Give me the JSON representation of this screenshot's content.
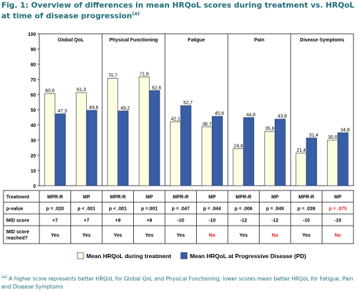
{
  "title": "Fig. 1: Overview of differences in mean HRQoL scores during treatment vs. HRQoL at time of disease progression",
  "title_footnote_marker": "(a)",
  "chart_data": {
    "type": "bar",
    "yticks": [
      "0",
      "10",
      "20",
      "30",
      "40",
      "50",
      "60",
      "70",
      "80",
      "90",
      "100"
    ],
    "ylim": [
      0,
      100
    ],
    "groups": [
      "Global QoL",
      "Physical Functioning",
      "Fatigue",
      "Pain",
      "Disease Symptoms"
    ],
    "treatments": [
      "MPR-R",
      "MP",
      "MPR-R",
      "MP",
      "MPR-R",
      "MP",
      "MPR-R",
      "MP",
      "MPR-R",
      "MP"
    ],
    "series": [
      {
        "name": "Mean HRQoL during treatment",
        "color": "#fdfde0",
        "values": [
          60.6,
          61.3,
          70.7,
          71.6,
          42.1,
          38.7,
          24.4,
          35.6,
          21.4,
          30.0
        ],
        "labels": [
          "60,6",
          "61,3",
          "70,7",
          "71,6",
          "42,1",
          "38,7",
          "24,4",
          "35,6",
          "21,4",
          "30,0"
        ]
      },
      {
        "name": "Mean HRQoL at Progressive Disease (PD)",
        "color": "#3a5ea6",
        "values": [
          47.3,
          49.6,
          49.2,
          62.6,
          52.7,
          45.6,
          44.8,
          43.8,
          31.4,
          34.8
        ],
        "labels": [
          "47,3",
          "49,6",
          "49,2",
          "62,6",
          "52,7",
          "45,6",
          "44,8",
          "43,8",
          "31,4",
          "34,8"
        ]
      }
    ],
    "grid": false,
    "legend_position": "bottom",
    "table": {
      "row_labels": [
        "Treatment",
        "p-value",
        "MID score",
        "MID score reached?"
      ],
      "p_values": [
        "p = .020",
        "p < .001",
        "p < .001",
        "p =.001",
        "p = .047",
        "p = .044",
        "p = .006",
        "p = .049",
        "p = .039",
        "p = .075"
      ],
      "p_value_colors": [
        "#000000",
        "#000000",
        "#000000",
        "#000000",
        "#000000",
        "#000000",
        "#000000",
        "#000000",
        "#000000",
        "#e02020"
      ],
      "mid_scores": [
        "+7",
        "+7",
        "+9",
        "+9",
        "-10",
        "-10",
        "-12",
        "-12",
        "-10",
        "-10"
      ],
      "mid_reached": [
        "Yes",
        "Yes",
        "Yes",
        "Yes",
        "Yes",
        "No",
        "Yes",
        "No",
        "Yes",
        "No"
      ],
      "mid_reached_colors": [
        "#000000",
        "#000000",
        "#000000",
        "#000000",
        "#000000",
        "#e02020",
        "#000000",
        "#e02020",
        "#000000",
        "#e02020"
      ]
    }
  },
  "footnote_marker": "(a)",
  "footnote": "A higher score represents better HRQoL for Global QoL and Physical Functioning; lower scores mean better HRQoL for Fatigue, Pain and Disease Symptoms"
}
